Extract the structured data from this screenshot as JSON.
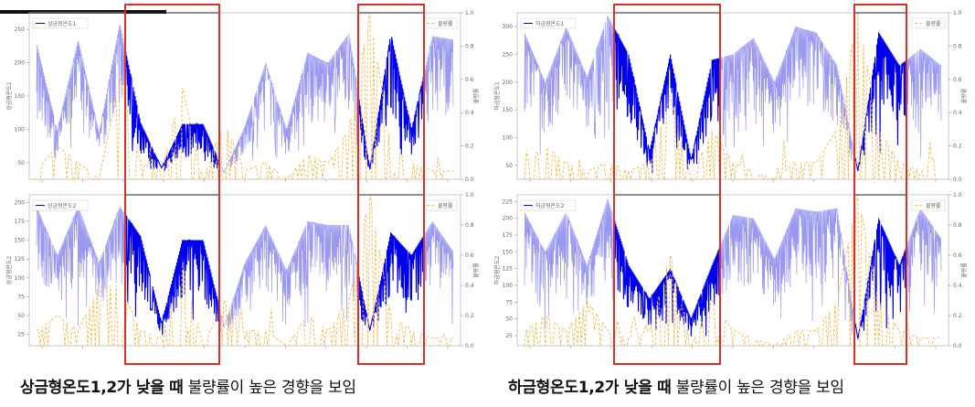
{
  "figures": [
    {
      "id": "upper-mold-temp",
      "panels": [
        {
          "series_label": "상금형온도1",
          "rate_label": "불량률",
          "ylabel_left": "상금형온도1",
          "ylabel_right": "불량률",
          "yticks": [
            50,
            100,
            150,
            200,
            250
          ],
          "ylim": [
            25,
            275
          ]
        },
        {
          "series_label": "상금형온도2",
          "rate_label": "불량률",
          "ylabel_left": "상금형온도2",
          "ylabel_right": "불량률",
          "yticks": [
            25,
            50,
            75,
            100,
            125,
            150,
            175,
            200
          ],
          "ylim": [
            10,
            210
          ]
        }
      ],
      "caption_bold": "상금형온도1,2가 낮을 때",
      "caption_rest": " 불량률이 높은 경향을 보임"
    },
    {
      "id": "lower-mold-temp",
      "panels": [
        {
          "series_label": "하금형온도1",
          "rate_label": "불량률",
          "ylabel_left": "하금형온도1",
          "ylabel_right": "불량률",
          "yticks": [
            50,
            100,
            150,
            200,
            250,
            300
          ],
          "ylim": [
            25,
            325
          ]
        },
        {
          "series_label": "하금형온도2",
          "rate_label": "불량률",
          "ylabel_left": "하금형온도2",
          "ylabel_right": "불량률",
          "yticks": [
            25,
            50,
            75,
            100,
            125,
            150,
            175,
            200,
            225
          ],
          "ylim": [
            10,
            235
          ]
        }
      ],
      "caption_bold": "하금형온도1,2가 낮을 때",
      "caption_rest": " 불량률이 높은 경향을 보임"
    }
  ],
  "right_axis_ticks": [
    "0.0",
    "0.2",
    "0.4",
    "0.6",
    "0.8",
    "1.0"
  ],
  "colors": {
    "temp": "#9999f2",
    "temp_highlight": "#0000ee",
    "rate": "#f5b84a",
    "box": "#d9302a",
    "axis": "#666666"
  },
  "chart_data": [
    {
      "type": "line",
      "title": "",
      "ylabel": "상금형온도1",
      "ylabel_right": "불량률",
      "ylim": [
        25,
        275
      ],
      "ylim_right": [
        0,
        1
      ],
      "series": [
        {
          "name": "상금형온도1",
          "axis": "left",
          "x": [
            0,
            1,
            2,
            3,
            4,
            5,
            6,
            7,
            8,
            9,
            10,
            11,
            12,
            13,
            14,
            15,
            16,
            17,
            18,
            19,
            20
          ],
          "values": [
            230,
            100,
            235,
            95,
            260,
            110,
            42,
            108,
            108,
            35,
            105,
            200,
            100,
            215,
            200,
            245,
            40,
            245,
            100,
            240,
            235
          ]
        },
        {
          "name": "불량률",
          "axis": "right",
          "x": [
            0,
            1,
            2,
            3,
            4,
            5,
            6,
            7,
            8,
            9,
            10,
            11,
            12,
            13,
            14,
            15,
            16,
            17,
            18,
            19,
            20
          ],
          "values": [
            0.05,
            0.2,
            0.1,
            0,
            0.6,
            0.1,
            0.05,
            0.55,
            0,
            0.35,
            0.05,
            0.1,
            0,
            0.15,
            0.1,
            0.3,
            1.0,
            0.2,
            0.1,
            0.05,
            0.05
          ]
        }
      ]
    },
    {
      "type": "line",
      "title": "",
      "ylabel": "상금형온도2",
      "ylabel_right": "불량률",
      "ylim": [
        10,
        210
      ],
      "ylim_right": [
        0,
        1
      ],
      "series": [
        {
          "name": "상금형온도2",
          "axis": "left",
          "x": [
            0,
            1,
            2,
            3,
            4,
            5,
            6,
            7,
            8,
            9,
            10,
            11,
            12,
            13,
            14,
            15,
            16,
            17,
            18,
            19,
            20
          ],
          "values": [
            195,
            130,
            195,
            120,
            195,
            155,
            40,
            150,
            150,
            35,
            120,
            170,
            110,
            175,
            170,
            170,
            30,
            160,
            130,
            175,
            135
          ]
        },
        {
          "name": "불량률",
          "axis": "right",
          "x": [
            0,
            1,
            2,
            3,
            4,
            5,
            6,
            7,
            8,
            9,
            10,
            11,
            12,
            13,
            14,
            15,
            16,
            17,
            18,
            19,
            20
          ],
          "values": [
            0.1,
            0.2,
            0.1,
            0.4,
            0.4,
            0.1,
            0.05,
            0.55,
            0,
            0.3,
            0.1,
            0.1,
            0,
            0.2,
            0.1,
            0.3,
            1.0,
            0.2,
            0.1,
            0.05,
            0.05
          ]
        }
      ]
    },
    {
      "type": "line",
      "title": "",
      "ylabel": "하금형온도1",
      "ylabel_right": "불량률",
      "ylim": [
        25,
        325
      ],
      "ylim_right": [
        0,
        1
      ],
      "series": [
        {
          "name": "하금형온도1",
          "axis": "left",
          "x": [
            0,
            1,
            2,
            3,
            4,
            5,
            6,
            7,
            8,
            9,
            10,
            11,
            12,
            13,
            14,
            15,
            16,
            17,
            18,
            19,
            20
          ],
          "values": [
            290,
            200,
            300,
            210,
            320,
            250,
            75,
            250,
            60,
            240,
            250,
            280,
            200,
            300,
            290,
            230,
            40,
            290,
            230,
            260,
            230
          ]
        },
        {
          "name": "불량률",
          "axis": "right",
          "x": [
            0,
            1,
            2,
            3,
            4,
            5,
            6,
            7,
            8,
            9,
            10,
            11,
            12,
            13,
            14,
            15,
            16,
            17,
            18,
            19,
            20
          ],
          "values": [
            0.1,
            0.2,
            0.1,
            0.05,
            0.1,
            0.05,
            0.1,
            0.5,
            0,
            0.3,
            0.1,
            0.05,
            0,
            0.1,
            0.1,
            0.3,
            1.0,
            0.3,
            0.1,
            0.05,
            0.05
          ]
        }
      ]
    },
    {
      "type": "line",
      "title": "",
      "ylabel": "하금형온도2",
      "ylabel_right": "불량률",
      "ylim": [
        10,
        235
      ],
      "ylim_right": [
        0,
        1
      ],
      "series": [
        {
          "name": "하금형온도2",
          "axis": "left",
          "x": [
            0,
            1,
            2,
            3,
            4,
            5,
            6,
            7,
            8,
            9,
            10,
            11,
            12,
            13,
            14,
            15,
            16,
            17,
            18,
            19,
            20
          ],
          "values": [
            210,
            150,
            210,
            130,
            230,
            130,
            80,
            125,
            50,
            130,
            205,
            200,
            140,
            215,
            210,
            215,
            20,
            200,
            130,
            215,
            170
          ]
        },
        {
          "name": "불량률",
          "axis": "right",
          "x": [
            0,
            1,
            2,
            3,
            4,
            5,
            6,
            7,
            8,
            9,
            10,
            11,
            12,
            13,
            14,
            15,
            16,
            17,
            18,
            19,
            20
          ],
          "values": [
            0.1,
            0.2,
            0.1,
            0.3,
            0.1,
            0.05,
            0.1,
            0.6,
            0,
            0.3,
            0.1,
            0.05,
            0,
            0.1,
            0.1,
            0.3,
            1.0,
            0.3,
            0.1,
            0.05,
            0.05
          ]
        }
      ]
    }
  ]
}
